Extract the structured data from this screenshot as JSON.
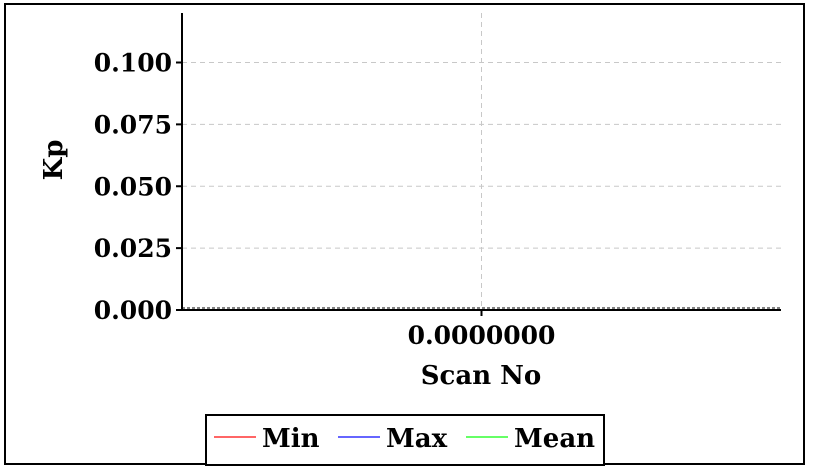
{
  "chart_data": {
    "type": "line",
    "title": "",
    "xlabel": "Scan No",
    "ylabel": "Kp",
    "x": [
      0
    ],
    "xlim": [
      -0.5,
      0.5
    ],
    "xticks": [
      0
    ],
    "xtick_labels": [
      "0.0000000"
    ],
    "ylim": [
      0,
      0.12
    ],
    "yticks": [
      0,
      0.025,
      0.05,
      0.075,
      0.1
    ],
    "ytick_labels": [
      "0.000",
      "0.025",
      "0.050",
      "0.075",
      "0.100"
    ],
    "grid": true,
    "legend_position": "bottom",
    "series": [
      {
        "name": "Min",
        "color": "#ff6666",
        "values": [
          0
        ]
      },
      {
        "name": "Max",
        "color": "#6666ff",
        "values": [
          0
        ]
      },
      {
        "name": "Mean",
        "color": "#66ff66",
        "values": [
          0
        ]
      }
    ]
  }
}
